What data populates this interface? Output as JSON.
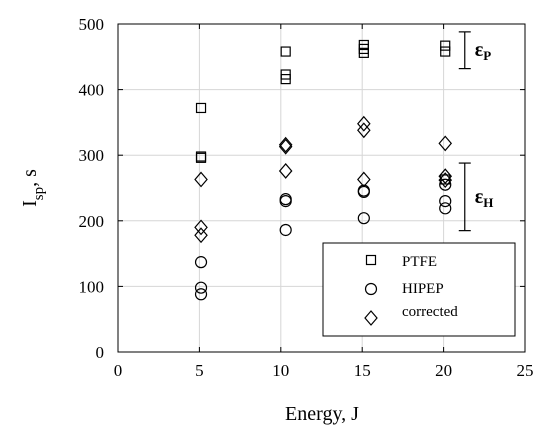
{
  "chart_data": {
    "type": "scatter",
    "xlabel": "Energy, J",
    "ylabel_main": "I",
    "ylabel_sub": "sp",
    "ylabel_unit": ", s",
    "xlim": [
      0,
      25
    ],
    "ylim": [
      0,
      500
    ],
    "xticks": [
      0,
      5,
      10,
      15,
      20,
      25
    ],
    "yticks": [
      0,
      100,
      200,
      300,
      400,
      500
    ],
    "grid": true,
    "legend_position": "bottom-right",
    "series": [
      {
        "name": "PTFE",
        "marker": "square",
        "points": [
          {
            "x": 5.1,
            "y": 372
          },
          {
            "x": 5.1,
            "y": 298
          },
          {
            "x": 5.1,
            "y": 296
          },
          {
            "x": 10.3,
            "y": 458
          },
          {
            "x": 10.3,
            "y": 423
          },
          {
            "x": 10.3,
            "y": 416
          },
          {
            "x": 15.1,
            "y": 468
          },
          {
            "x": 15.1,
            "y": 462
          },
          {
            "x": 15.1,
            "y": 456
          },
          {
            "x": 20.1,
            "y": 467
          },
          {
            "x": 20.1,
            "y": 458
          },
          {
            "x": 20.1,
            "y": 263
          }
        ]
      },
      {
        "name": "HIPEP",
        "marker": "circle",
        "points": [
          {
            "x": 5.1,
            "y": 137
          },
          {
            "x": 5.1,
            "y": 98
          },
          {
            "x": 5.1,
            "y": 88
          },
          {
            "x": 10.3,
            "y": 233
          },
          {
            "x": 10.3,
            "y": 230
          },
          {
            "x": 10.3,
            "y": 186
          },
          {
            "x": 15.1,
            "y": 246
          },
          {
            "x": 15.1,
            "y": 244
          },
          {
            "x": 15.1,
            "y": 204
          },
          {
            "x": 20.1,
            "y": 255
          },
          {
            "x": 20.1,
            "y": 230
          },
          {
            "x": 20.1,
            "y": 219
          }
        ]
      },
      {
        "name": "corrected",
        "marker": "diamond",
        "points": [
          {
            "x": 5.1,
            "y": 263
          },
          {
            "x": 5.1,
            "y": 190
          },
          {
            "x": 5.1,
            "y": 178
          },
          {
            "x": 10.3,
            "y": 316
          },
          {
            "x": 10.3,
            "y": 313
          },
          {
            "x": 10.3,
            "y": 276
          },
          {
            "x": 15.1,
            "y": 348
          },
          {
            "x": 15.1,
            "y": 338
          },
          {
            "x": 15.1,
            "y": 263
          },
          {
            "x": 20.1,
            "y": 318
          },
          {
            "x": 20.1,
            "y": 268
          },
          {
            "x": 20.1,
            "y": 262
          }
        ]
      }
    ],
    "annotations": [
      {
        "label_main": "ε",
        "label_sub": "P",
        "x": 21.3,
        "y_low": 432,
        "y_high": 488
      },
      {
        "label_main": "ε",
        "label_sub": "H",
        "x": 21.3,
        "y_low": 185,
        "y_high": 288
      }
    ]
  }
}
